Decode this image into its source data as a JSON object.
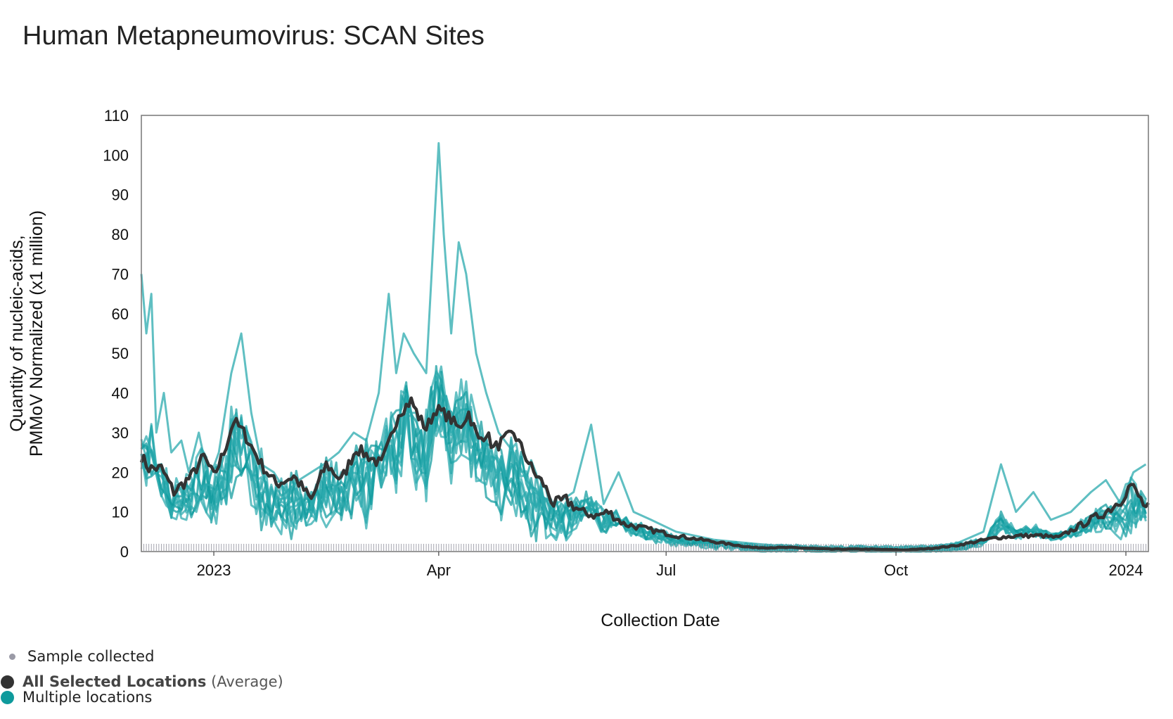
{
  "title": "Human Metapneumovirus: SCAN Sites",
  "legend": {
    "sample": "Sample collected",
    "average_name": "All Selected Locations",
    "average_suffix": "(Average)",
    "multi": "Multiple locations"
  },
  "colors": {
    "average": "#333333",
    "sites": "#2aa9ad",
    "sample_dot": "#9a9aa6",
    "legend_sites": "#0e9a9c"
  },
  "chart_data": {
    "type": "line",
    "xlabel": "Collection Date",
    "ylabel": [
      "Quantity of nucleic-acids,",
      "PMMoV Normalized (x1 million)"
    ],
    "xlim": [
      "2022-12-03",
      "2024-01-10"
    ],
    "ylim": [
      0,
      110
    ],
    "y_ticks": [
      0,
      10,
      20,
      30,
      40,
      50,
      60,
      70,
      80,
      90,
      100,
      110
    ],
    "x_ticks": [
      {
        "date": "2023-01-01",
        "label": "2023"
      },
      {
        "date": "2023-04-01",
        "label": "Apr"
      },
      {
        "date": "2023-07-01",
        "label": "Jul"
      },
      {
        "date": "2023-10-01",
        "label": "Oct"
      },
      {
        "date": "2024-01-01",
        "label": "2024"
      }
    ],
    "grid": false,
    "legend_position": "bottom-left",
    "series": [
      {
        "name": "All Selected Locations (Average)",
        "role": "average",
        "points": [
          [
            "2022-12-03",
            24
          ],
          [
            "2022-12-06",
            21
          ],
          [
            "2022-12-11",
            21
          ],
          [
            "2022-12-16",
            15
          ],
          [
            "2022-12-23",
            19
          ],
          [
            "2022-12-28",
            24
          ],
          [
            "2023-01-01",
            19
          ],
          [
            "2023-01-05",
            25
          ],
          [
            "2023-01-09",
            33
          ],
          [
            "2023-01-13",
            30
          ],
          [
            "2023-01-20",
            22
          ],
          [
            "2023-01-26",
            17
          ],
          [
            "2023-02-02",
            19
          ],
          [
            "2023-02-09",
            13
          ],
          [
            "2023-02-15",
            22
          ],
          [
            "2023-02-21",
            18
          ],
          [
            "2023-02-27",
            26
          ],
          [
            "2023-03-04",
            24
          ],
          [
            "2023-03-09",
            22
          ],
          [
            "2023-03-12",
            27
          ],
          [
            "2023-03-16",
            35
          ],
          [
            "2023-03-21",
            38
          ],
          [
            "2023-03-24",
            34
          ],
          [
            "2023-03-27",
            31
          ],
          [
            "2023-03-31",
            36
          ],
          [
            "2023-04-05",
            34
          ],
          [
            "2023-04-09",
            31
          ],
          [
            "2023-04-13",
            35
          ],
          [
            "2023-04-17",
            28
          ],
          [
            "2023-04-20",
            30
          ],
          [
            "2023-04-23",
            26
          ],
          [
            "2023-04-27",
            28
          ],
          [
            "2023-05-01",
            30
          ],
          [
            "2023-05-05",
            25
          ],
          [
            "2023-05-09",
            20
          ],
          [
            "2023-05-13",
            17
          ],
          [
            "2023-05-17",
            12
          ],
          [
            "2023-05-22",
            13
          ],
          [
            "2023-05-28",
            10
          ],
          [
            "2023-06-03",
            9
          ],
          [
            "2023-06-08",
            10
          ],
          [
            "2023-06-14",
            7
          ],
          [
            "2023-06-21",
            6
          ],
          [
            "2023-06-28",
            5
          ],
          [
            "2023-07-05",
            4
          ],
          [
            "2023-07-15",
            3
          ],
          [
            "2023-07-25",
            2
          ],
          [
            "2023-08-05",
            1
          ],
          [
            "2023-08-20",
            1
          ],
          [
            "2023-09-05",
            0.6
          ],
          [
            "2023-09-20",
            0.6
          ],
          [
            "2023-10-05",
            0.4
          ],
          [
            "2023-10-15",
            0.8
          ],
          [
            "2023-10-25",
            1.5
          ],
          [
            "2023-11-02",
            2.5
          ],
          [
            "2023-11-10",
            3.5
          ],
          [
            "2023-11-20",
            4
          ],
          [
            "2023-11-28",
            4
          ],
          [
            "2023-12-05",
            3.5
          ],
          [
            "2023-12-12",
            6
          ],
          [
            "2023-12-18",
            8
          ],
          [
            "2023-12-24",
            10
          ],
          [
            "2023-12-30",
            13
          ],
          [
            "2024-01-03",
            17
          ],
          [
            "2024-01-06",
            14
          ],
          [
            "2024-01-09",
            11
          ]
        ]
      },
      {
        "name": "Multiple locations",
        "role": "site",
        "points": [
          [
            "2022-12-03",
            70
          ],
          [
            "2022-12-05",
            55
          ],
          [
            "2022-12-07",
            65
          ],
          [
            "2022-12-09",
            30
          ],
          [
            "2022-12-12",
            40
          ],
          [
            "2022-12-15",
            25
          ],
          [
            "2022-12-19",
            28
          ],
          [
            "2022-12-22",
            20
          ],
          [
            "2022-12-26",
            30
          ],
          [
            "2022-12-30",
            18
          ],
          [
            "2023-01-03",
            25
          ],
          [
            "2023-01-08",
            45
          ],
          [
            "2023-01-12",
            55
          ],
          [
            "2023-01-16",
            35
          ],
          [
            "2023-01-20",
            22
          ],
          [
            "2023-01-25",
            20
          ],
          [
            "2023-01-30",
            15
          ],
          [
            "2023-02-04",
            18
          ],
          [
            "2023-02-09",
            20
          ],
          [
            "2023-02-14",
            22
          ],
          [
            "2023-02-20",
            25
          ],
          [
            "2023-02-26",
            30
          ],
          [
            "2023-03-03",
            28
          ],
          [
            "2023-03-08",
            40
          ],
          [
            "2023-03-12",
            65
          ],
          [
            "2023-03-15",
            45
          ],
          [
            "2023-03-18",
            55
          ],
          [
            "2023-03-22",
            50
          ],
          [
            "2023-03-27",
            45
          ],
          [
            "2023-04-01",
            103
          ],
          [
            "2023-04-03",
            80
          ],
          [
            "2023-04-06",
            55
          ],
          [
            "2023-04-09",
            78
          ],
          [
            "2023-04-12",
            70
          ],
          [
            "2023-04-16",
            50
          ],
          [
            "2023-04-20",
            40
          ],
          [
            "2023-04-25",
            30
          ],
          [
            "2023-05-01",
            25
          ],
          [
            "2023-05-06",
            18
          ],
          [
            "2023-05-12",
            14
          ],
          [
            "2023-05-18",
            12
          ],
          [
            "2023-05-25",
            15
          ],
          [
            "2023-06-01",
            32
          ],
          [
            "2023-06-06",
            12
          ],
          [
            "2023-06-12",
            20
          ],
          [
            "2023-06-18",
            10
          ],
          [
            "2023-06-25",
            8
          ],
          [
            "2023-07-05",
            5
          ],
          [
            "2023-07-20",
            3
          ],
          [
            "2023-08-05",
            2
          ],
          [
            "2023-08-25",
            1
          ],
          [
            "2023-09-10",
            1
          ],
          [
            "2023-09-25",
            1
          ],
          [
            "2023-10-10",
            1
          ],
          [
            "2023-10-25",
            2
          ],
          [
            "2023-11-05",
            5
          ],
          [
            "2023-11-12",
            22
          ],
          [
            "2023-11-18",
            10
          ],
          [
            "2023-11-25",
            15
          ],
          [
            "2023-12-02",
            8
          ],
          [
            "2023-12-10",
            10
          ],
          [
            "2023-12-18",
            15
          ],
          [
            "2023-12-24",
            18
          ],
          [
            "2023-12-30",
            12
          ],
          [
            "2024-01-04",
            20
          ],
          [
            "2024-01-09",
            22
          ]
        ]
      }
    ]
  }
}
